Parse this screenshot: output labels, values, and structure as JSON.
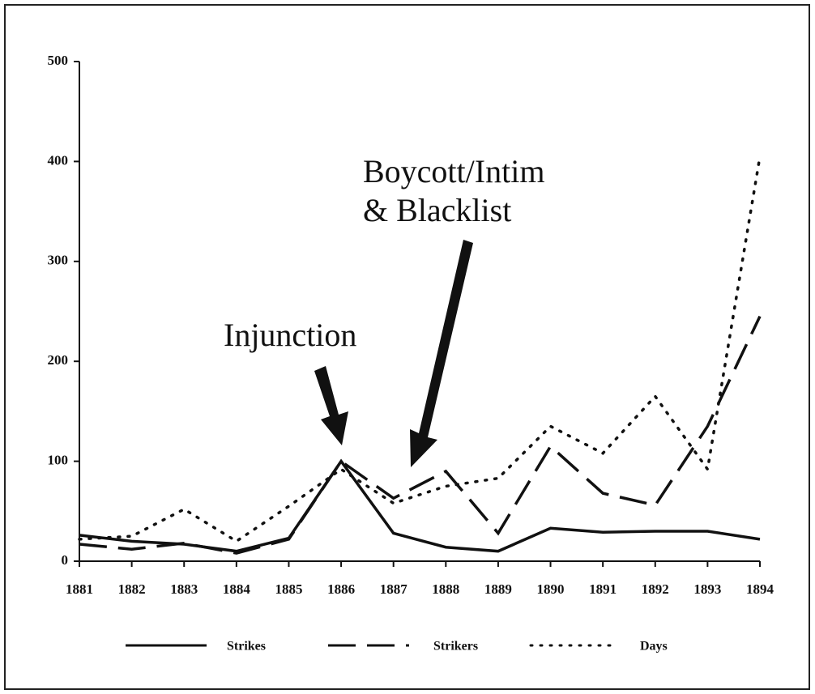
{
  "chart_data": {
    "type": "line",
    "x": [
      1881,
      1882,
      1883,
      1884,
      1885,
      1886,
      1887,
      1888,
      1889,
      1890,
      1891,
      1892,
      1893,
      1894
    ],
    "xlim": [
      1881,
      1894
    ],
    "xticks": [
      1881,
      1882,
      1883,
      1884,
      1885,
      1886,
      1887,
      1888,
      1889,
      1890,
      1891,
      1892,
      1893,
      1894
    ],
    "ylim": [
      0,
      500
    ],
    "yticks": [
      0,
      100,
      200,
      300,
      400,
      500
    ],
    "series": [
      {
        "name": "Strikes",
        "color": "#111111",
        "style": "solid",
        "values": [
          26,
          20,
          17,
          10,
          23,
          100,
          28,
          14,
          10,
          33,
          29,
          30,
          30,
          22
        ]
      },
      {
        "name": "Strikers",
        "color": "#111111",
        "style": "dashed",
        "values": [
          17,
          12,
          18,
          8,
          22,
          100,
          63,
          90,
          28,
          115,
          68,
          56,
          135,
          245
        ]
      },
      {
        "name": "Days",
        "color": "#111111",
        "style": "dotted",
        "values": [
          22,
          25,
          52,
          20,
          55,
          92,
          58,
          75,
          83,
          135,
          108,
          165,
          92,
          405
        ]
      }
    ],
    "annotations": [
      "Injunction",
      "Boycott/Intim",
      "& Blacklist"
    ],
    "grid": false
  }
}
